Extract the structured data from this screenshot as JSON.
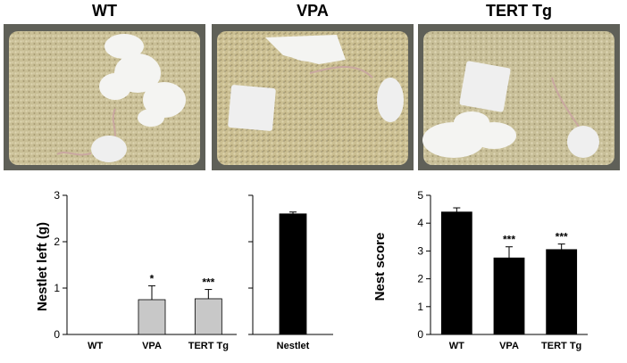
{
  "photos": {
    "groups": [
      {
        "title": "WT"
      },
      {
        "title": "VPA"
      },
      {
        "title": "TERT Tg"
      }
    ]
  },
  "chart_data": [
    {
      "type": "bar",
      "categories": [
        "WT",
        "VPA",
        "TERT Tg"
      ],
      "values": [
        0,
        0.75,
        0.77
      ],
      "errors": [
        0,
        0.3,
        0.2
      ],
      "significance": [
        "",
        "*",
        "***"
      ],
      "ylabel": "Nestlet left (g)",
      "ylim": [
        0,
        3
      ],
      "yticks": [
        "0",
        "1",
        "2",
        "3"
      ],
      "bar_color": "#c8c8c8",
      "grid": false
    },
    {
      "type": "bar",
      "categories": [
        "Nestlet"
      ],
      "values": [
        2.6
      ],
      "errors": [
        0.04
      ],
      "significance": [
        ""
      ],
      "ylim": [
        0,
        3
      ],
      "bar_color": "#000000",
      "grid": false
    },
    {
      "type": "bar",
      "categories": [
        "WT",
        "VPA",
        "TERT Tg"
      ],
      "values": [
        4.4,
        2.75,
        3.05
      ],
      "errors": [
        0.15,
        0.4,
        0.2
      ],
      "significance": [
        "",
        "***",
        "***"
      ],
      "ylabel": "Nest score",
      "ylim": [
        0,
        5
      ],
      "yticks": [
        "0",
        "1",
        "2",
        "3",
        "4",
        "5"
      ],
      "bar_color": "#000000",
      "grid": false
    }
  ]
}
